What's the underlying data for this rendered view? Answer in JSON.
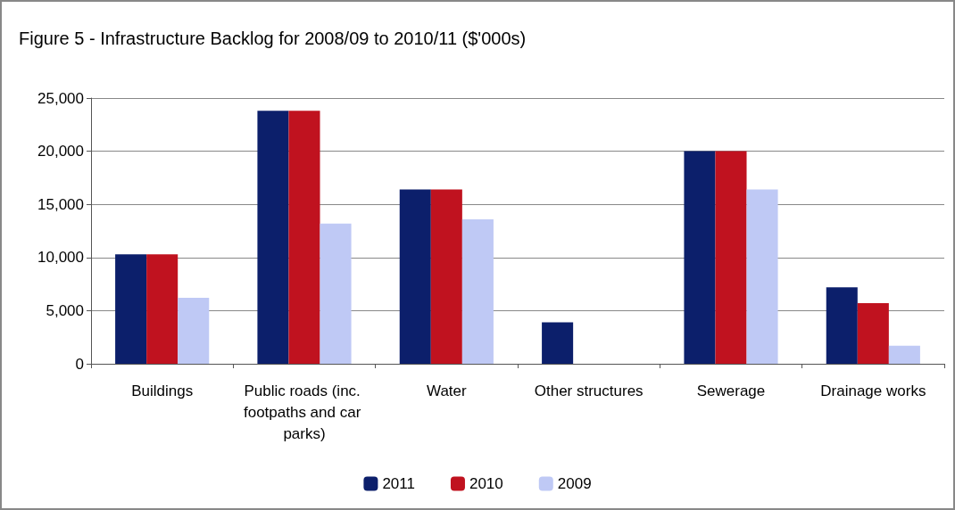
{
  "chart_data": {
    "type": "bar",
    "title": "Figure 5 - Infrastructure Backlog for 2008/09 to 2010/11 ($'000s)",
    "categories": [
      "Buildings",
      "Public roads (inc. footpaths and car parks)",
      "Water",
      "Other structures",
      "Sewerage",
      "Drainage works"
    ],
    "series": [
      {
        "name": "2011",
        "color": "#0c1f6b",
        "values": [
          10300,
          23800,
          16400,
          3900,
          20000,
          7200
        ]
      },
      {
        "name": "2010",
        "color": "#c0121f",
        "values": [
          10300,
          23800,
          16400,
          0,
          20000,
          5700
        ]
      },
      {
        "name": "2009",
        "color": "#bfc9f5",
        "values": [
          6200,
          13200,
          13600,
          0,
          16400,
          1700
        ]
      }
    ],
    "ylim": [
      0,
      25000
    ],
    "yticks": [
      0,
      {
        "value": 5000,
        "label": "5,000"
      },
      {
        "value": 10000,
        "label": "10,000"
      },
      {
        "value": 15000,
        "label": "15,000"
      },
      {
        "value": 20000,
        "label": "20,000"
      },
      {
        "value": 25000,
        "label": "25,000"
      }
    ],
    "grid": "y",
    "legend": "bottom"
  }
}
